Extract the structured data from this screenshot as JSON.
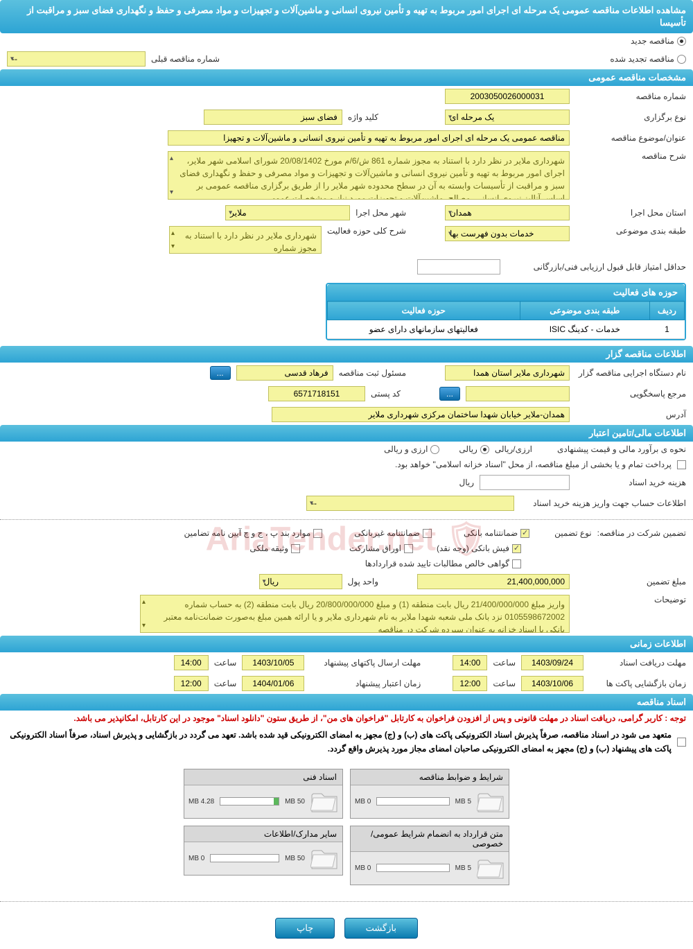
{
  "title": "مشاهده اطلاعات مناقصه عمومی یک مرحله ای اجرای امور مربوط به تهیه و تأمین نیروی انسانی و ماشین‌آلات و تجهیزات و مواد مصرفی و حفظ و نگهداری فضای سبز و مراقبت از تأسیسا",
  "radios": {
    "new": "مناقصه جدید",
    "renewed": "مناقصه تجدید شده"
  },
  "prev_number_label": "شماره مناقصه قبلی",
  "prev_number_value": "--",
  "sections": {
    "general": "مشخصات مناقصه عمومی",
    "organizer": "اطلاعات مناقصه گزار",
    "financial": "اطلاعات مالی/تامین اعتبار",
    "timing": "اطلاعات زمانی",
    "documents": "اسناد مناقصه"
  },
  "general": {
    "tender_number_label": "شماره مناقصه",
    "tender_number": "2003050026000031",
    "type_label": "نوع برگزاری",
    "type_value": "یک مرحله ای",
    "keyword_label": "کلید واژه",
    "keyword_value": "فضای سبز",
    "subject_label": "عنوان/موضوع مناقصه",
    "subject_value": "مناقصه عمومی یک مرحله ای اجرای امور مربوط به تهیه و تأمین نیروی انسانی و ماشین‌آلات و تجهیزا",
    "description_label": "شرح مناقصه",
    "description_value": "شهرداری ملایر در نظر دارد با استناد به مجوز شماره 861 ش/6/م مورخ 20/08/1402 شورای اسلامی شهر ملایر، اجرای امور مربوط به تهیه و تأمین نیروی انسانی و ماشین‌آلات و تجهیزات و مواد مصرفی و حفظ و نگهداری فضای سبز و مراقبت از تأسیسات وابسته به آن در سطح محدوده شهر ملایر را از طریق برگزاری مناقصه عمومی بر اساس آنالیز نیروی انسانی، مصالح، ماشین‌آلات و تجهیزات مورد نیاز و مشخصات عمومی",
    "province_label": "استان محل اجرا",
    "province_value": "همدان",
    "city_label": "شهر محل اجرا",
    "city_value": "ملایر",
    "category_label": "طبقه بندی موضوعی",
    "category_value": "خدمات بدون فهرست بها",
    "scope_label": "شرح کلی حوزه فعالیت",
    "scope_value": "شهرداری ملایر در نظر دارد با استناد به مجوز شماره",
    "min_score_label": "حداقل امتیاز قابل قبول ارزیابی فنی/بازرگانی"
  },
  "activity_table": {
    "title": "حوزه های فعالیت",
    "cols": {
      "row": "ردیف",
      "category": "طبقه بندی موضوعی",
      "scope": "حوزه فعالیت"
    },
    "rows": [
      {
        "idx": "1",
        "category": "خدمات - کدینگ ISIC",
        "scope": "فعالیتهای سازمانهای دارای عضو"
      }
    ]
  },
  "organizer": {
    "agency_label": "نام دستگاه اجرایی مناقصه گزار",
    "agency_value": "شهرداری ملایر استان همدا",
    "registrar_label": "مسئول ثبت مناقصه",
    "registrar_value": "فرهاد قدسی",
    "contact_label": "مرجع پاسخگویی",
    "postal_label": "کد پستی",
    "postal_value": "6571718151",
    "address_label": "آدرس",
    "address_value": "همدان-ملایر خیابان شهدا ساختمان مرکزی شهرداری ملایر",
    "more": "..."
  },
  "financial": {
    "estimation_label": "نحوه ی برآورد مالی و قیمت پیشنهادی",
    "currency_label": "ارزی/ریالی",
    "option_rial": "ریالی",
    "option_currency": "ارزی و ریالی",
    "treasury_note": "پرداخت تمام و یا بخشی از مبلغ مناقصه، از محل \"اسناد خزانه اسلامی\" خواهد بود.",
    "doc_cost_label": "هزینه خرید اسناد",
    "rial_unit": "ریال",
    "account_info_label": "اطلاعات حساب جهت واریز هزینه خرید اسناد",
    "account_value": "--",
    "guarantee_label": "تضمین شرکت در مناقصه:",
    "guarantee_type_label": "نوع تضمین",
    "g_bank": "ضمانتنامه بانکی",
    "g_nonbank": "ضمانتنامه غیربانکی",
    "g_cases": "موارد بند پ ، ج و چ آیین نامه تضامین",
    "g_cash": "فیش بانکی (وجه نقد)",
    "g_securities": "اوراق مشارکت",
    "g_deed": "وثیقه ملکی",
    "g_receivables": "گواهی خالص مطالبات تایید شده قراردادها",
    "amount_label": "مبلغ تضمین",
    "amount_value": "21,400,000,000",
    "unit_label": "واحد پول",
    "unit_value": "ریال",
    "notes_label": "توضیحات",
    "notes_value": "واریز مبلغ 21/400/000/000 ریال بابت منطقه (1) و مبلغ 20/800/000/000 ریال بابت منطقه (2) به حساب شماره 0105598672002 نزد بانک ملی شعبه شهدا ملایر به نام شهرداری ملایر و یا ارائه همین مبلغ به‌صورت ضمانت‌نامه معتبر بانکی یا اسناد خزانه به عنوان سپرده شرکت در مناقصه"
  },
  "timing": {
    "receipt_label": "مهلت دریافت اسناد",
    "receipt_date": "1403/09/24",
    "receipt_time": "14:00",
    "opening_label": "زمان بازگشایی پاکت ها",
    "opening_date": "1403/10/06",
    "opening_time": "12:00",
    "submit_label": "مهلت ارسال پاکتهای پیشنهاد",
    "submit_date": "1403/10/05",
    "submit_time": "14:00",
    "validity_label": "زمان اعتبار پیشنهاد",
    "validity_date": "1404/01/06",
    "validity_time": "12:00",
    "time_label": "ساعت"
  },
  "documents": {
    "note_red": "توجه : کاربر گرامی، دریافت اسناد در مهلت قانونی و پس از افزودن فراخوان به کارتابل \"فراخوان های من\"، از طریق ستون \"دانلود اسناد\" موجود در این کارتابل، امکانپذیر می باشد.",
    "note_bold": "متعهد می شود در اسناد مناقصه، صرفاً پذیرش اسناد الکترونیکی پاکت های (ب) و (ج) مجهز به امضای الکترونیکی قید شده باشد. تعهد می گردد در بازگشایی و پذیرش اسناد، صرفاً اسناد الکترونیکی پاکت های پیشنهاد (ب) و (ج) مجهز به امضای الکترونیکی صاحبان امضای مجاز مورد پذیرش واقع گردد.",
    "boxes": [
      {
        "title": "شرایط و ضوابط مناقصه",
        "used": "0 MB",
        "total": "5 MB",
        "fill_pct": 0
      },
      {
        "title": "اسناد فنی",
        "used": "4.28 MB",
        "total": "50 MB",
        "fill_pct": 8
      },
      {
        "title": "متن قرارداد به انضمام شرایط عمومی/خصوصی",
        "used": "0 MB",
        "total": "5 MB",
        "fill_pct": 0
      },
      {
        "title": "سایر مدارک/اطلاعات",
        "used": "0 MB",
        "total": "50 MB",
        "fill_pct": 0
      }
    ]
  },
  "buttons": {
    "back": "بازگشت",
    "print": "چاپ"
  }
}
